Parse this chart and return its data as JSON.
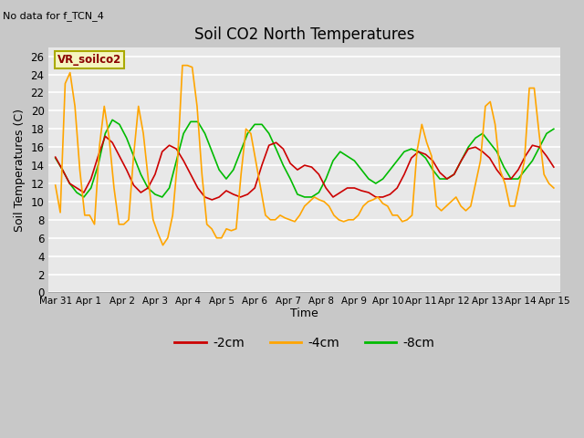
{
  "title": "Soil CO2 North Temperatures",
  "subtitle": "No data for f_TCN_4",
  "ylabel": "Soil Temperatures (C)",
  "xlabel": "Time",
  "legend_label": "VR_soilco2",
  "ylim": [
    0,
    27
  ],
  "yticks": [
    0,
    2,
    4,
    6,
    8,
    10,
    12,
    14,
    16,
    18,
    20,
    22,
    24,
    26
  ],
  "xtick_labels": [
    "Mar 31",
    "Apr 1",
    "Apr 2",
    "Apr 3",
    "Apr 4",
    "Apr 5",
    "Apr 6",
    "Apr 7",
    "Apr 8",
    "Apr 9",
    "Apr 10",
    "Apr 11",
    "Apr 12",
    "Apr 13",
    "Apr 14",
    "Apr 15"
  ],
  "color_2cm": "#cc0000",
  "color_4cm": "#ffa500",
  "color_8cm": "#00bb00",
  "t_2cm": [
    14.9,
    13.5,
    12.0,
    11.5,
    11.0,
    12.5,
    15.0,
    17.2,
    16.5,
    15.0,
    13.5,
    11.8,
    11.0,
    11.5,
    13.0,
    15.5,
    16.2,
    15.8,
    14.5,
    13.0,
    11.5,
    10.5,
    10.2,
    10.5,
    11.2,
    10.8,
    10.5,
    10.8,
    11.5,
    14.0,
    16.2,
    16.5,
    15.8,
    14.2,
    13.5,
    14.0,
    13.8,
    13.0,
    11.5,
    10.5,
    11.0,
    11.5,
    11.5,
    11.2,
    11.0,
    10.5,
    10.5,
    10.8,
    11.5,
    13.0,
    14.8,
    15.5,
    15.2,
    14.5,
    13.2,
    12.5,
    13.0,
    14.5,
    15.8,
    16.0,
    15.5,
    14.8,
    13.5,
    12.5,
    12.5,
    13.5,
    15.0,
    16.2,
    16.0,
    15.0,
    13.8
  ],
  "t_4cm": [
    11.8,
    8.8,
    23.0,
    24.2,
    20.5,
    13.5,
    8.5,
    8.5,
    7.5,
    16.0,
    20.5,
    17.0,
    11.5,
    7.5,
    7.5,
    8.0,
    15.0,
    20.5,
    17.5,
    12.5,
    8.0,
    6.5,
    5.2,
    6.0,
    8.5,
    14.5,
    25.0,
    25.0,
    24.8,
    20.5,
    13.0,
    7.5,
    7.0,
    6.0,
    6.0,
    7.0,
    6.8,
    7.0,
    13.0,
    18.0,
    17.5,
    14.5,
    11.5,
    8.5,
    8.0,
    8.0,
    8.5,
    8.2,
    8.0,
    7.8,
    8.5,
    9.5,
    10.0,
    10.5,
    10.2,
    10.0,
    9.5,
    8.5,
    8.0,
    7.8,
    8.0,
    8.0,
    8.5,
    9.5,
    10.0,
    10.2,
    10.5,
    9.8,
    9.5,
    8.5,
    8.5,
    7.8,
    8.0,
    8.5,
    15.5,
    18.5,
    16.5,
    15.0,
    9.5,
    9.0,
    9.5,
    10.0,
    10.5,
    9.5,
    9.0,
    9.5,
    12.0,
    14.5,
    20.5,
    21.0,
    18.5,
    13.5,
    12.0,
    9.5,
    9.5,
    12.0,
    14.5,
    22.5,
    22.5,
    17.5,
    13.0,
    12.0,
    11.5
  ],
  "t_8cm": [
    14.8,
    13.5,
    12.0,
    11.0,
    10.5,
    11.5,
    14.0,
    17.5,
    19.0,
    18.5,
    17.0,
    15.0,
    13.0,
    11.5,
    10.8,
    10.5,
    11.5,
    14.5,
    17.5,
    18.8,
    18.8,
    17.5,
    15.5,
    13.5,
    12.5,
    13.5,
    15.5,
    17.5,
    18.5,
    18.5,
    17.5,
    15.8,
    14.0,
    12.5,
    10.8,
    10.5,
    10.5,
    11.0,
    12.5,
    14.5,
    15.5,
    15.0,
    14.5,
    13.5,
    12.5,
    12.0,
    12.5,
    13.5,
    14.5,
    15.5,
    15.8,
    15.5,
    14.8,
    13.5,
    12.5,
    12.5,
    13.0,
    14.5,
    16.0,
    17.0,
    17.5,
    16.5,
    15.5,
    13.8,
    12.5,
    12.5,
    13.5,
    14.5,
    16.0,
    17.5,
    18.0
  ]
}
